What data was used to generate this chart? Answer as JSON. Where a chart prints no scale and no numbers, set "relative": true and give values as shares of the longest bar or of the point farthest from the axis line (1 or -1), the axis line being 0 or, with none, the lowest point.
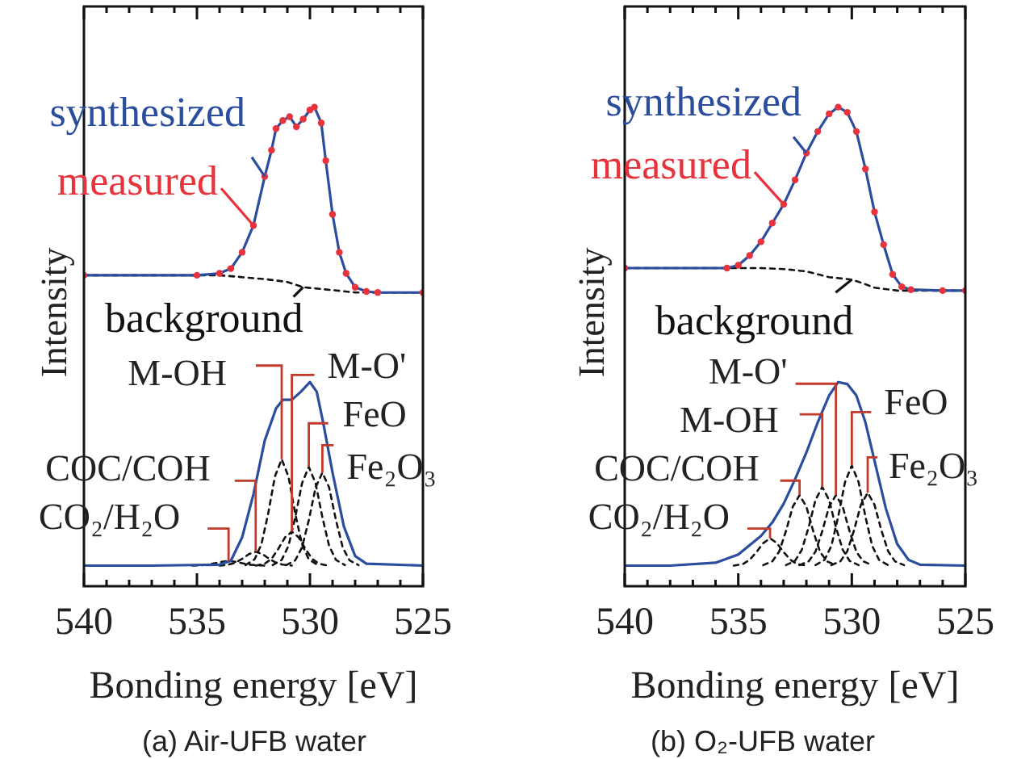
{
  "chart_data": [
    {
      "type": "line",
      "title": "(a) Air-UFB water",
      "xlabel": "Bonding energy [eV]",
      "ylabel": "Intensity",
      "relative": true,
      "legend": "top left",
      "xlim": [
        540,
        525
      ],
      "xticks": [
        540,
        {
          "value": 539,
          "label": null
        },
        {
          "value": 538,
          "label": null
        },
        {
          "value": 537,
          "label": null
        },
        {
          "value": 536,
          "label": null
        },
        535,
        {
          "value": 534,
          "label": null
        },
        {
          "value": 533,
          "label": null
        },
        {
          "value": 532,
          "label": null
        },
        {
          "value": 531,
          "label": null
        },
        530,
        {
          "value": 529,
          "label": null
        },
        {
          "value": 528,
          "label": null
        },
        {
          "value": 527,
          "label": null
        },
        {
          "value": 526,
          "label": null
        },
        525
      ],
      "series": [
        {
          "name": "synthesized",
          "type": "line",
          "color": "#2a4d9e",
          "x": [
            540,
            535,
            534,
            533.5,
            533,
            532.5,
            532,
            531.7,
            531.5,
            531.2,
            530.9,
            530.6,
            530.3,
            530,
            529.8,
            529.5,
            529.3,
            529,
            528.7,
            528.4,
            528,
            527.5,
            527,
            525
          ],
          "values": [
            0.649,
            0.649,
            0.653,
            0.663,
            0.697,
            0.753,
            0.855,
            0.91,
            0.955,
            0.972,
            0.98,
            0.959,
            0.975,
            0.994,
            1,
            0.967,
            0.888,
            0.776,
            0.697,
            0.653,
            0.624,
            0.615,
            0.613,
            0.613
          ]
        },
        {
          "name": "measured",
          "type": "scatter",
          "marker": "circle",
          "color": "#e8323c",
          "x": [
            540,
            535,
            534,
            533.5,
            533,
            532.5,
            532,
            531.7,
            531.5,
            531.2,
            530.9,
            530.6,
            530.3,
            530,
            529.8,
            529.5,
            529.3,
            529,
            528.7,
            528.4,
            528,
            527.5,
            527,
            525
          ],
          "values": [
            0.649,
            0.649,
            0.653,
            0.663,
            0.697,
            0.753,
            0.855,
            0.91,
            0.955,
            0.972,
            0.98,
            0.959,
            0.975,
            0.994,
            1,
            0.967,
            0.888,
            0.776,
            0.697,
            0.653,
            0.624,
            0.615,
            0.613,
            0.613
          ]
        },
        {
          "name": "background",
          "type": "line",
          "line_style": "dashed",
          "color": "#111111",
          "x": [
            540,
            534,
            532,
            531,
            530.3,
            529,
            528,
            525
          ],
          "values": [
            0.649,
            0.649,
            0.641,
            0.635,
            0.624,
            0.618,
            0.613,
            0.613
          ]
        },
        {
          "type": "line",
          "color": "#2a4d9e",
          "x": [
            540,
            537,
            534,
            533.5,
            533,
            532.5,
            532,
            531.5,
            531.2,
            530.8,
            530.4,
            530,
            529.7,
            529.4,
            529,
            528.5,
            528,
            527.5,
            525
          ],
          "values": [
            0.043,
            0.043,
            0.045,
            0.053,
            0.102,
            0.192,
            0.304,
            0.371,
            0.389,
            0.389,
            0.406,
            0.426,
            0.406,
            0.338,
            0.237,
            0.125,
            0.063,
            0.047,
            0.043
          ]
        },
        {
          "type": "line",
          "line_style": "dashed",
          "color": "#111111",
          "x": [
            532.85,
            532.45,
            532.15,
            531.85,
            531.55,
            531.25,
            530.95,
            530.65,
            530.35,
            530.05,
            529.65
          ],
          "values": [
            0.044,
            0.056,
            0.087,
            0.151,
            0.229,
            0.265,
            0.229,
            0.151,
            0.087,
            0.056,
            0.044
          ]
        },
        {
          "type": "line",
          "line_style": "dashed",
          "color": "#111111",
          "x": [
            532.4,
            532,
            531.7,
            531.4,
            531.1,
            530.8,
            530.5,
            530.2,
            529.9,
            529.6,
            529.2
          ],
          "values": [
            0.043,
            0.047,
            0.057,
            0.078,
            0.102,
            0.114,
            0.102,
            0.078,
            0.057,
            0.047,
            0.043
          ]
        },
        {
          "type": "line",
          "line_style": "dashed",
          "color": "#111111",
          "x": [
            531.65,
            531.25,
            530.95,
            530.65,
            530.35,
            530.05,
            529.75,
            529.45,
            529.15,
            528.85,
            528.45
          ],
          "values": [
            0.044,
            0.055,
            0.084,
            0.144,
            0.215,
            0.249,
            0.215,
            0.144,
            0.084,
            0.055,
            0.044
          ]
        },
        {
          "type": "line",
          "line_style": "dashed",
          "color": "#111111",
          "x": [
            531.05,
            530.65,
            530.35,
            530.05,
            529.75,
            529.45,
            529.15,
            528.85,
            528.55,
            528.25,
            527.85
          ],
          "values": [
            0.044,
            0.054,
            0.081,
            0.138,
            0.206,
            0.237,
            0.206,
            0.138,
            0.081,
            0.054,
            0.044
          ]
        },
        {
          "type": "line",
          "line_style": "dashed",
          "color": "#111111",
          "x": [
            534,
            533.6,
            533.3,
            533,
            532.7,
            532.4,
            532.1,
            531.8,
            531.5,
            531.2,
            530.8
          ],
          "values": [
            0.043,
            0.045,
            0.049,
            0.057,
            0.067,
            0.072,
            0.067,
            0.057,
            0.049,
            0.045,
            0.043
          ]
        },
        {
          "type": "line",
          "line_style": "dashed",
          "color": "#111111",
          "x": [
            535.2,
            534.8,
            534.5,
            534.2,
            533.9,
            533.6,
            533.3,
            533,
            532.7,
            532.4,
            532
          ],
          "values": [
            0.043,
            0.044,
            0.045,
            0.048,
            0.051,
            0.053,
            0.051,
            0.048,
            0.045,
            0.044,
            0.043
          ]
        }
      ],
      "annotations": [
        {
          "text": "M-OH",
          "x": 531.25,
          "y": 0.265
        },
        {
          "text": "M-O'",
          "x": 530.8,
          "y": 0.114
        },
        {
          "text": "FeO",
          "x": 530.05,
          "y": 0.249
        },
        {
          "text": "Fe₂O₃",
          "x": 529.45,
          "y": 0.237
        },
        {
          "text": "COC/COH",
          "x": 532.4,
          "y": 0.072
        },
        {
          "text": "CO₂/H₂O",
          "x": 533.6,
          "y": 0.053
        }
      ]
    },
    {
      "type": "line",
      "title": "(b) O₂-UFB water",
      "xlabel": "Bonding energy [eV]",
      "ylabel": "Intensity",
      "relative": true,
      "legend": "top left",
      "xlim": [
        540,
        525
      ],
      "xticks": [
        540,
        {
          "value": 539,
          "label": null
        },
        {
          "value": 538,
          "label": null
        },
        {
          "value": 537,
          "label": null
        },
        {
          "value": 536,
          "label": null
        },
        535,
        {
          "value": 534,
          "label": null
        },
        {
          "value": 533,
          "label": null
        },
        {
          "value": 532,
          "label": null
        },
        {
          "value": 531,
          "label": null
        },
        530,
        {
          "value": 529,
          "label": null
        },
        {
          "value": 528,
          "label": null
        },
        {
          "value": 527,
          "label": null
        },
        {
          "value": 526,
          "label": null
        },
        525
      ],
      "series": [
        {
          "name": "synthesized",
          "type": "line",
          "color": "#2a4d9e",
          "x": [
            540,
            535.5,
            535,
            534.5,
            534,
            533.5,
            533,
            532.5,
            532,
            531.5,
            531,
            530.6,
            530.2,
            529.8,
            529.4,
            529,
            528.6,
            528.2,
            527.8,
            527.4,
            526,
            525
          ],
          "values": [
            0.664,
            0.664,
            0.67,
            0.69,
            0.719,
            0.758,
            0.797,
            0.848,
            0.904,
            0.949,
            0.986,
            1,
            0.989,
            0.949,
            0.871,
            0.781,
            0.713,
            0.651,
            0.625,
            0.619,
            0.617,
            0.617
          ]
        },
        {
          "name": "measured",
          "type": "scatter",
          "marker": "circle",
          "color": "#e8323c",
          "x": [
            540,
            535.5,
            535,
            534.5,
            534,
            533.5,
            533,
            532.5,
            532,
            531.5,
            531,
            530.6,
            530.2,
            529.8,
            529.4,
            529,
            528.6,
            528.2,
            527.8,
            527.4,
            526,
            525
          ],
          "values": [
            0.664,
            0.664,
            0.67,
            0.69,
            0.719,
            0.758,
            0.797,
            0.848,
            0.904,
            0.949,
            0.986,
            1,
            0.989,
            0.949,
            0.871,
            0.781,
            0.713,
            0.651,
            0.625,
            0.619,
            0.617,
            0.617
          ]
        },
        {
          "name": "background",
          "type": "line",
          "line_style": "dashed",
          "color": "#111111",
          "x": [
            540,
            534,
            533,
            532,
            531,
            530,
            529.5,
            529,
            528,
            525
          ],
          "values": [
            0.664,
            0.664,
            0.662,
            0.657,
            0.645,
            0.64,
            0.632,
            0.623,
            0.617,
            0.617
          ]
        },
        {
          "type": "line",
          "color": "#2a4d9e",
          "x": [
            540,
            538,
            536,
            535,
            534,
            533.5,
            533,
            532.5,
            532,
            531.5,
            531,
            530.6,
            530.2,
            529.8,
            529.4,
            529,
            528.5,
            528,
            527.5,
            527,
            525
          ],
          "values": [
            0.043,
            0.043,
            0.049,
            0.066,
            0.105,
            0.133,
            0.172,
            0.223,
            0.279,
            0.342,
            0.398,
            0.426,
            0.422,
            0.398,
            0.342,
            0.262,
            0.162,
            0.088,
            0.055,
            0.045,
            0.043
          ]
        },
        {
          "type": "line",
          "line_style": "dashed",
          "color": "#111111",
          "x": [
            532.9,
            532.5,
            532.2,
            531.9,
            531.6,
            531.3,
            531,
            530.7,
            530.4,
            530.1,
            529.7
          ],
          "values": [
            0.044,
            0.053,
            0.076,
            0.123,
            0.18,
            0.207,
            0.18,
            0.123,
            0.076,
            0.053,
            0.044
          ]
        },
        {
          "type": "line",
          "line_style": "dashed",
          "color": "#111111",
          "x": [
            532.3,
            531.9,
            531.6,
            531.3,
            531,
            530.7,
            530.4,
            530.1,
            529.8,
            529.5,
            529.1
          ],
          "values": [
            0.044,
            0.052,
            0.072,
            0.115,
            0.166,
            0.19,
            0.166,
            0.115,
            0.072,
            0.052,
            0.044
          ]
        },
        {
          "type": "line",
          "line_style": "dashed",
          "color": "#111111",
          "x": [
            531.6,
            531.2,
            530.9,
            530.6,
            530.3,
            530,
            529.7,
            529.4,
            529.1,
            528.8,
            528.4
          ],
          "values": [
            0.044,
            0.055,
            0.084,
            0.145,
            0.217,
            0.252,
            0.217,
            0.145,
            0.084,
            0.055,
            0.044
          ]
        },
        {
          "type": "line",
          "line_style": "dashed",
          "color": "#111111",
          "x": [
            530.9,
            530.5,
            530.2,
            529.9,
            529.6,
            529.3,
            529,
            528.7,
            528.4,
            528.1,
            527.7
          ],
          "values": [
            0.044,
            0.052,
            0.073,
            0.117,
            0.17,
            0.195,
            0.17,
            0.117,
            0.073,
            0.052,
            0.044
          ]
        },
        {
          "type": "line",
          "line_style": "dashed",
          "color": "#111111",
          "x": [
            533.9,
            533.5,
            533.2,
            532.9,
            532.6,
            532.3,
            532,
            531.7,
            531.4,
            531.1,
            530.7
          ],
          "values": [
            0.044,
            0.052,
            0.072,
            0.115,
            0.166,
            0.19,
            0.166,
            0.115,
            0.072,
            0.052,
            0.044
          ]
        },
        {
          "type": "line",
          "line_style": "dashed",
          "color": "#111111",
          "x": [
            535.2,
            534.8,
            534.5,
            534.2,
            533.9,
            533.6,
            533.3,
            533,
            532.7,
            532.4,
            532
          ],
          "values": [
            0.043,
            0.046,
            0.055,
            0.071,
            0.09,
            0.1,
            0.09,
            0.071,
            0.055,
            0.046,
            0.043
          ]
        }
      ],
      "annotations": [
        {
          "text": "M-OH",
          "x": 531.3,
          "y": 0.207
        },
        {
          "text": "M-O'",
          "x": 530.7,
          "y": 0.19
        },
        {
          "text": "FeO",
          "x": 530,
          "y": 0.252
        },
        {
          "text": "Fe₂O₃",
          "x": 529.3,
          "y": 0.195
        },
        {
          "text": "COC/COH",
          "x": 532.3,
          "y": 0.19
        },
        {
          "text": "CO₂/H₂O",
          "x": 533.6,
          "y": 0.1
        }
      ]
    }
  ]
}
